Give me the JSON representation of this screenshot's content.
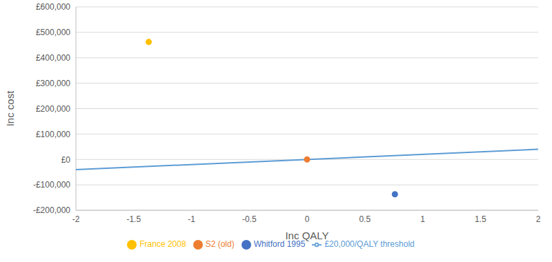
{
  "chart_data": {
    "type": "scatter",
    "x_label": "Inc QALY",
    "y_label": "Inc cost",
    "xlim": [
      -2,
      2
    ],
    "xticks": [
      -2,
      -1.5,
      -1,
      -0.5,
      0,
      0.5,
      1,
      1.5,
      2
    ],
    "ylim": [
      -200000,
      600000
    ],
    "yticks": [
      {
        "value": -200000,
        "label": "-£200,000"
      },
      {
        "value": -100000,
        "label": "-£100,000"
      },
      {
        "value": 0,
        "label": "£0"
      },
      {
        "value": 100000,
        "label": "£100,000"
      },
      {
        "value": 200000,
        "label": "£200,000"
      },
      {
        "value": 300000,
        "label": "£300,000"
      },
      {
        "value": 400000,
        "label": "£400,000"
      },
      {
        "value": 500000,
        "label": "£500,000"
      },
      {
        "value": 600000,
        "label": "£600,000"
      }
    ],
    "grid": "y",
    "legend": "bottom",
    "series": [
      {
        "name": "£20,000/QALY threshold",
        "type": "line",
        "color": "#5B9BD5",
        "x": [
          -2,
          2
        ],
        "values": [
          -40000,
          40000
        ]
      },
      {
        "name": "S2 (old)",
        "type": "scatter",
        "marker": "circle",
        "color": "#ED7D31",
        "x": [
          0
        ],
        "values": [
          0
        ]
      },
      {
        "name": "France 2008",
        "type": "scatter",
        "marker": "circle",
        "color": "#FFC000",
        "x": [
          -1.37
        ],
        "values": [
          462000
        ]
      },
      {
        "name": "Whitford 1995",
        "type": "scatter",
        "marker": "circle",
        "color": "#4472C4",
        "x": [
          0.76
        ],
        "values": [
          -137000
        ]
      }
    ]
  }
}
